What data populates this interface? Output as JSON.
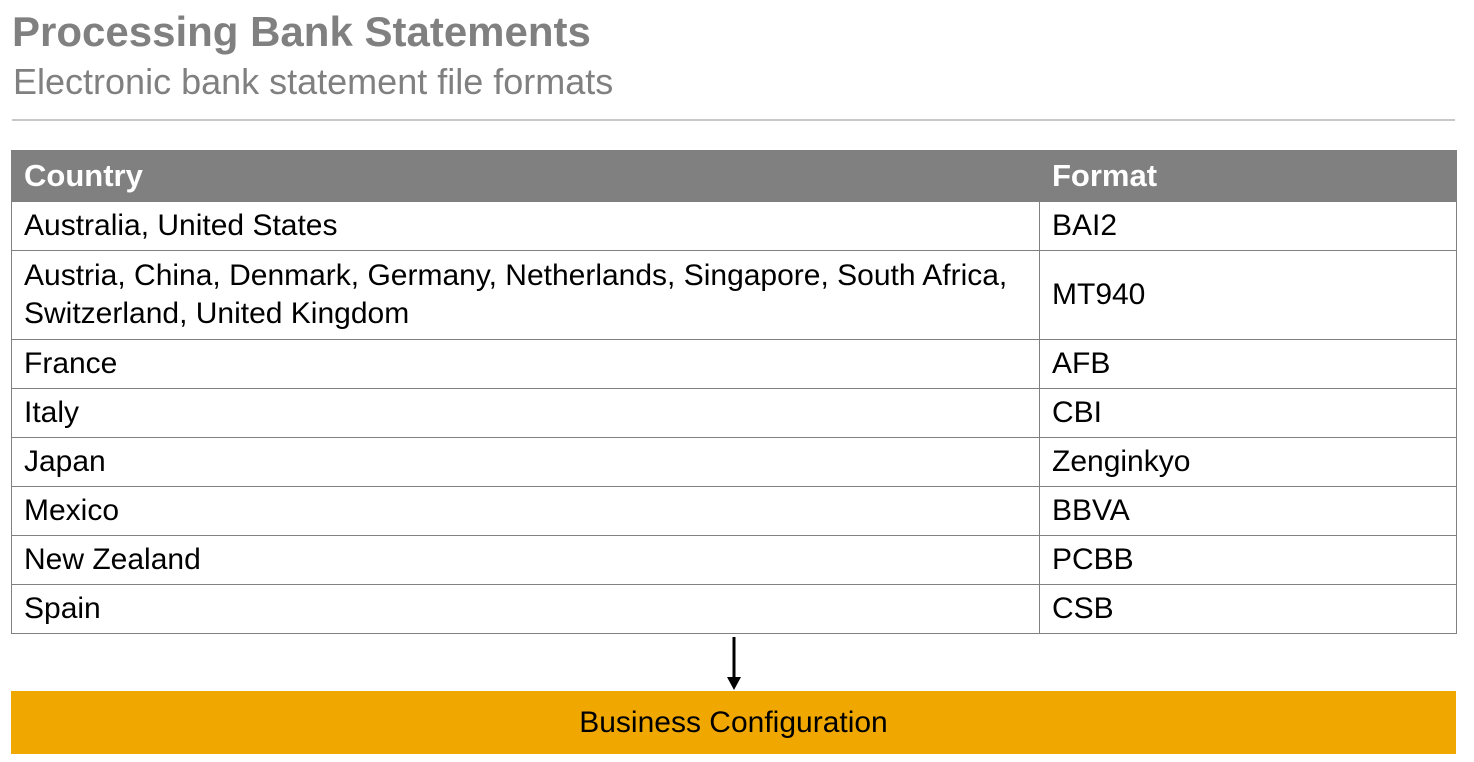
{
  "slide": {
    "title": "Processing Bank Statements",
    "subtitle": "Electronic bank statement file formats"
  },
  "table": {
    "headers": {
      "country": "Country",
      "format": "Format"
    },
    "rows": [
      {
        "country": "Australia, United States",
        "format": "BAI2"
      },
      {
        "country": "Austria, China, Denmark, Germany, Netherlands, Singapore, South Africa, Switzerland, United Kingdom",
        "format": "MT940"
      },
      {
        "country": "France",
        "format": "AFB"
      },
      {
        "country": "Italy",
        "format": "CBI"
      },
      {
        "country": "Japan",
        "format": "Zenginkyo"
      },
      {
        "country": "Mexico",
        "format": "BBVA"
      },
      {
        "country": "New Zealand",
        "format": "PCBB"
      },
      {
        "country": "Spain",
        "format": "CSB"
      }
    ]
  },
  "footer_box": {
    "label": "Business Configuration",
    "color": "#f0a800"
  },
  "colors": {
    "header_bg": "#808080",
    "title_text": "#808080",
    "divider": "#c8c8c8"
  }
}
